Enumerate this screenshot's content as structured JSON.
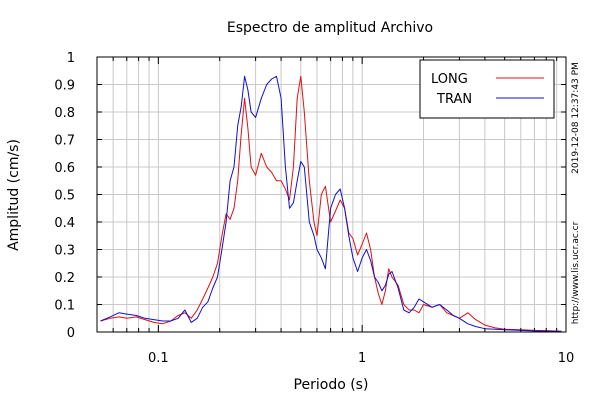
{
  "chart_data": {
    "type": "line",
    "title": "Espectro de amplitud Archivo",
    "xlabel": "Periodo (s)",
    "ylabel": "Amplitud (cm/s)",
    "x_scale": "log",
    "xlim": [
      0.05,
      10
    ],
    "ylim": [
      0,
      1
    ],
    "x_ticks": [
      0.1,
      1,
      10
    ],
    "x_tick_labels": [
      "0.1",
      "1",
      "10"
    ],
    "y_ticks": [
      0,
      0.1,
      0.2,
      0.3,
      0.4,
      0.5,
      0.6,
      0.7,
      0.8,
      0.9,
      1
    ],
    "y_tick_labels": [
      "0",
      "0.1",
      "0.2",
      "0.3",
      "0.4",
      "0.5",
      "0.6",
      "0.7",
      "0.8",
      "0.9",
      "1"
    ],
    "grid": true,
    "legend_position": "top-right",
    "side_notes": [
      "2019-12-08 12:37:43 PM",
      "http://www.lis.ucr.ac.cr"
    ],
    "series": [
      {
        "name": "LONG",
        "color": "#e01010",
        "points": [
          [
            0.052,
            0.04
          ],
          [
            0.058,
            0.05
          ],
          [
            0.064,
            0.055
          ],
          [
            0.07,
            0.05
          ],
          [
            0.078,
            0.055
          ],
          [
            0.086,
            0.045
          ],
          [
            0.095,
            0.035
          ],
          [
            0.105,
            0.03
          ],
          [
            0.115,
            0.04
          ],
          [
            0.125,
            0.06
          ],
          [
            0.135,
            0.07
          ],
          [
            0.145,
            0.05
          ],
          [
            0.155,
            0.08
          ],
          [
            0.165,
            0.12
          ],
          [
            0.175,
            0.16
          ],
          [
            0.185,
            0.2
          ],
          [
            0.195,
            0.25
          ],
          [
            0.205,
            0.35
          ],
          [
            0.215,
            0.43
          ],
          [
            0.225,
            0.41
          ],
          [
            0.235,
            0.45
          ],
          [
            0.245,
            0.55
          ],
          [
            0.255,
            0.72
          ],
          [
            0.265,
            0.85
          ],
          [
            0.275,
            0.74
          ],
          [
            0.285,
            0.6
          ],
          [
            0.3,
            0.57
          ],
          [
            0.32,
            0.65
          ],
          [
            0.34,
            0.6
          ],
          [
            0.36,
            0.58
          ],
          [
            0.38,
            0.55
          ],
          [
            0.4,
            0.55
          ],
          [
            0.42,
            0.52
          ],
          [
            0.44,
            0.48
          ],
          [
            0.46,
            0.6
          ],
          [
            0.48,
            0.85
          ],
          [
            0.5,
            0.93
          ],
          [
            0.52,
            0.8
          ],
          [
            0.55,
            0.55
          ],
          [
            0.58,
            0.4
          ],
          [
            0.6,
            0.35
          ],
          [
            0.63,
            0.5
          ],
          [
            0.66,
            0.53
          ],
          [
            0.7,
            0.4
          ],
          [
            0.74,
            0.44
          ],
          [
            0.78,
            0.48
          ],
          [
            0.82,
            0.45
          ],
          [
            0.86,
            0.36
          ],
          [
            0.9,
            0.34
          ],
          [
            0.95,
            0.28
          ],
          [
            1.0,
            0.32
          ],
          [
            1.05,
            0.36
          ],
          [
            1.1,
            0.3
          ],
          [
            1.15,
            0.2
          ],
          [
            1.2,
            0.14
          ],
          [
            1.25,
            0.1
          ],
          [
            1.3,
            0.15
          ],
          [
            1.35,
            0.23
          ],
          [
            1.4,
            0.2
          ],
          [
            1.5,
            0.17
          ],
          [
            1.6,
            0.1
          ],
          [
            1.7,
            0.08
          ],
          [
            1.8,
            0.08
          ],
          [
            1.9,
            0.07
          ],
          [
            2.0,
            0.1
          ],
          [
            2.2,
            0.09
          ],
          [
            2.4,
            0.1
          ],
          [
            2.6,
            0.07
          ],
          [
            2.8,
            0.06
          ],
          [
            3.0,
            0.05
          ],
          [
            3.3,
            0.07
          ],
          [
            3.6,
            0.045
          ],
          [
            4.0,
            0.025
          ],
          [
            4.5,
            0.015
          ],
          [
            5.0,
            0.01
          ],
          [
            6.0,
            0.008
          ],
          [
            7.0,
            0.006
          ],
          [
            8.0,
            0.005
          ],
          [
            9.5,
            0.003
          ]
        ]
      },
      {
        "name": "TRAN",
        "color": "#1010d0",
        "points": [
          [
            0.052,
            0.04
          ],
          [
            0.058,
            0.055
          ],
          [
            0.064,
            0.07
          ],
          [
            0.07,
            0.065
          ],
          [
            0.078,
            0.06
          ],
          [
            0.086,
            0.05
          ],
          [
            0.095,
            0.045
          ],
          [
            0.105,
            0.04
          ],
          [
            0.115,
            0.04
          ],
          [
            0.125,
            0.05
          ],
          [
            0.135,
            0.08
          ],
          [
            0.145,
            0.035
          ],
          [
            0.155,
            0.05
          ],
          [
            0.165,
            0.09
          ],
          [
            0.175,
            0.11
          ],
          [
            0.185,
            0.16
          ],
          [
            0.195,
            0.2
          ],
          [
            0.205,
            0.3
          ],
          [
            0.215,
            0.4
          ],
          [
            0.225,
            0.55
          ],
          [
            0.235,
            0.6
          ],
          [
            0.245,
            0.75
          ],
          [
            0.255,
            0.82
          ],
          [
            0.265,
            0.93
          ],
          [
            0.275,
            0.88
          ],
          [
            0.285,
            0.8
          ],
          [
            0.3,
            0.78
          ],
          [
            0.32,
            0.85
          ],
          [
            0.34,
            0.9
          ],
          [
            0.36,
            0.92
          ],
          [
            0.38,
            0.93
          ],
          [
            0.4,
            0.85
          ],
          [
            0.42,
            0.6
          ],
          [
            0.44,
            0.45
          ],
          [
            0.46,
            0.47
          ],
          [
            0.48,
            0.55
          ],
          [
            0.5,
            0.62
          ],
          [
            0.52,
            0.6
          ],
          [
            0.55,
            0.4
          ],
          [
            0.58,
            0.35
          ],
          [
            0.6,
            0.3
          ],
          [
            0.63,
            0.27
          ],
          [
            0.66,
            0.23
          ],
          [
            0.7,
            0.45
          ],
          [
            0.74,
            0.5
          ],
          [
            0.78,
            0.52
          ],
          [
            0.82,
            0.45
          ],
          [
            0.86,
            0.35
          ],
          [
            0.9,
            0.27
          ],
          [
            0.95,
            0.22
          ],
          [
            1.0,
            0.27
          ],
          [
            1.05,
            0.3
          ],
          [
            1.1,
            0.26
          ],
          [
            1.15,
            0.2
          ],
          [
            1.2,
            0.18
          ],
          [
            1.25,
            0.15
          ],
          [
            1.3,
            0.17
          ],
          [
            1.35,
            0.21
          ],
          [
            1.4,
            0.22
          ],
          [
            1.5,
            0.16
          ],
          [
            1.6,
            0.08
          ],
          [
            1.7,
            0.07
          ],
          [
            1.8,
            0.09
          ],
          [
            1.9,
            0.12
          ],
          [
            2.0,
            0.11
          ],
          [
            2.2,
            0.09
          ],
          [
            2.4,
            0.1
          ],
          [
            2.6,
            0.08
          ],
          [
            2.8,
            0.06
          ],
          [
            3.0,
            0.05
          ],
          [
            3.3,
            0.03
          ],
          [
            3.6,
            0.02
          ],
          [
            4.0,
            0.012
          ],
          [
            4.5,
            0.01
          ],
          [
            5.0,
            0.008
          ],
          [
            6.0,
            0.006
          ],
          [
            7.0,
            0.004
          ],
          [
            8.0,
            0.003
          ],
          [
            9.5,
            0.002
          ]
        ]
      }
    ]
  }
}
